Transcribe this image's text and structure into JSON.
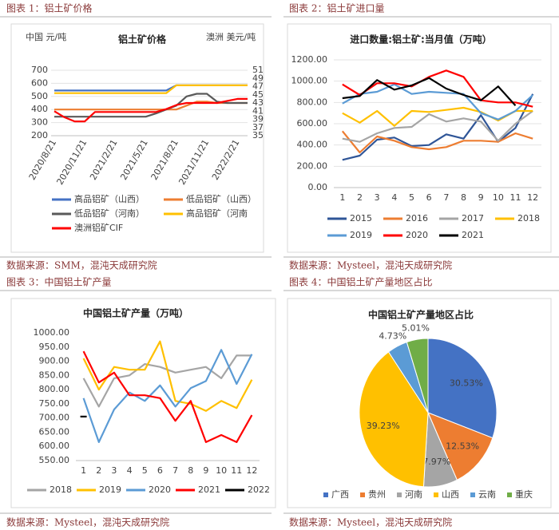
{
  "chart_data": [
    {
      "type": "line",
      "caption": "图表 1：铝土矿价格",
      "source": "数据来源：SMM，混沌天成研究院",
      "title": "铝土矿价格",
      "ylabel": "中国 元/吨",
      "y2label": "澳洲 美元/吨",
      "categories": [
        "2020/8/21",
        null,
        null,
        "2020/11/21",
        null,
        null,
        "2021/2/21",
        null,
        null,
        "2021/5/21",
        null,
        null,
        "2021/8/21",
        null,
        null,
        "2021/11/21",
        null,
        null,
        "2022/2/21",
        null
      ],
      "ylim": [
        200,
        700
      ],
      "yticks": [
        200,
        300,
        400,
        500,
        600,
        700
      ],
      "y2lim": [
        35,
        51
      ],
      "y2ticks": [
        35,
        37,
        39,
        41,
        43,
        45,
        47,
        49,
        51
      ],
      "grid": true,
      "series": [
        {
          "name": "高品铝矿（山西）",
          "color": "#4472c4",
          "values": [
            545,
            545,
            545,
            545,
            545,
            545,
            545,
            545,
            545,
            545,
            545,
            545,
            585,
            585,
            585,
            585,
            585,
            585,
            585,
            585
          ]
        },
        {
          "name": "低品铝矿（山西）",
          "color": "#ed7d31",
          "values": [
            400,
            400,
            400,
            400,
            400,
            400,
            400,
            400,
            400,
            400,
            400,
            400,
            400,
            430,
            460,
            460,
            450,
            450,
            450,
            450
          ]
        },
        {
          "name": "低品铝矿（河南）",
          "color": "#595959",
          "values": [
            345,
            345,
            345,
            345,
            345,
            345,
            345,
            345,
            345,
            345,
            370,
            400,
            430,
            500,
            520,
            520,
            460,
            450,
            450,
            450
          ]
        },
        {
          "name": "高品铝矿（河南",
          "color": "#ffc000",
          "values": [
            525,
            525,
            525,
            525,
            525,
            525,
            525,
            525,
            525,
            525,
            525,
            525,
            585,
            585,
            585,
            585,
            585,
            585,
            585,
            585
          ]
        },
        {
          "name": "澳洲铝矿CIF",
          "color": "#ff0000",
          "axis": "y2",
          "values": [
            41,
            39.5,
            38.5,
            38.5,
            40.8,
            40.8,
            40.8,
            40.8,
            40.8,
            40.8,
            40.8,
            41.5,
            42.5,
            43,
            43,
            43,
            43,
            43.5,
            44,
            44
          ]
        }
      ]
    },
    {
      "type": "line",
      "caption": "图表 2：铝土矿进口量",
      "source": "数据来源：Mysteel，混沌天成研究院",
      "title": "进口数量:铝土矿:当月值（万吨）",
      "categories": [
        "1",
        "2",
        "3",
        "4",
        "5",
        "6",
        "7",
        "8",
        "9",
        "10",
        "11",
        "12"
      ],
      "ylim": [
        0,
        1200
      ],
      "grid": true,
      "yticks": [
        {
          "value": 0,
          "label": "0.00"
        },
        {
          "value": 200,
          "label": "200.00"
        },
        {
          "value": 400,
          "label": "400.00"
        },
        {
          "value": 600,
          "label": "600.00"
        },
        {
          "value": 800,
          "label": "800.00"
        },
        {
          "value": 1000,
          "label": "1000.00"
        },
        {
          "value": 1200,
          "label": "1200.00"
        }
      ],
      "series": [
        {
          "name": "2015",
          "color": "#2f5597",
          "values": [
            260,
            300,
            450,
            470,
            390,
            400,
            500,
            460,
            680,
            430,
            560,
            880
          ]
        },
        {
          "name": "2016",
          "color": "#ed7d31",
          "values": [
            530,
            330,
            480,
            440,
            380,
            360,
            380,
            440,
            440,
            430,
            510,
            460
          ]
        },
        {
          "name": "2017",
          "color": "#a5a5a5",
          "values": [
            460,
            430,
            510,
            560,
            570,
            690,
            620,
            650,
            620,
            440,
            600,
            720
          ]
        },
        {
          "name": "2018",
          "color": "#ffc000",
          "values": [
            700,
            610,
            720,
            580,
            720,
            710,
            730,
            750,
            710,
            630,
            720,
            720
          ]
        },
        {
          "name": "2019",
          "color": "#5b9bd5",
          "values": [
            790,
            880,
            900,
            970,
            880,
            900,
            890,
            880,
            700,
            640,
            720,
            870
          ]
        },
        {
          "name": "2020",
          "color": "#ff0000",
          "values": [
            970,
            870,
            980,
            980,
            950,
            1040,
            1100,
            1040,
            820,
            800,
            800,
            760
          ]
        },
        {
          "name": "2021",
          "color": "#000000",
          "values": [
            840,
            860,
            1010,
            920,
            960,
            1030,
            930,
            870,
            820,
            950,
            770,
            null
          ]
        }
      ]
    },
    {
      "type": "line",
      "caption": "图表 3：中国铝土矿产量",
      "source": "数据来源：Mysteel，混沌天成研究院",
      "title": "中国铝土矿产量（万吨）",
      "categories": [
        "1",
        "2",
        "3",
        "4",
        "5",
        "6",
        "7",
        "8",
        "9",
        "10",
        "11",
        "12"
      ],
      "ylim": [
        550,
        1000
      ],
      "grid": false,
      "yticks": [
        {
          "value": 550,
          "label": "550.00"
        },
        {
          "value": 600,
          "label": "600.00"
        },
        {
          "value": 650,
          "label": "650.00"
        },
        {
          "value": 700,
          "label": "700.00"
        },
        {
          "value": 750,
          "label": "750.00"
        },
        {
          "value": 800,
          "label": "800.00"
        },
        {
          "value": 850,
          "label": "850.00"
        },
        {
          "value": 900,
          "label": "900.00"
        },
        {
          "value": 950,
          "label": "950.00"
        },
        {
          "value": 1000,
          "label": "1000.00"
        }
      ],
      "series": [
        {
          "name": "2018",
          "color": "#a5a5a5",
          "values": [
            840,
            740,
            840,
            850,
            890,
            880,
            860,
            870,
            880,
            840,
            920,
            920
          ]
        },
        {
          "name": "2019",
          "color": "#ffc000",
          "values": [
            910,
            800,
            880,
            870,
            870,
            970,
            760,
            750,
            725,
            760,
            735,
            835
          ]
        },
        {
          "name": "2020",
          "color": "#5b9bd5",
          "values": [
            770,
            615,
            730,
            790,
            760,
            815,
            740,
            805,
            830,
            940,
            820,
            925
          ]
        },
        {
          "name": "2021",
          "color": "#ff0000",
          "values": [
            935,
            825,
            860,
            780,
            780,
            770,
            690,
            760,
            615,
            640,
            615,
            710
          ]
        },
        {
          "name": "2022",
          "color": "#000000",
          "values": [
            705,
            null,
            null,
            null,
            null,
            null,
            null,
            null,
            null,
            null,
            null,
            null
          ]
        }
      ]
    },
    {
      "type": "pie",
      "caption": "图表 4：中国铝土矿产量地区占比",
      "source": "数据来源：Mysteel，混沌天成研究院",
      "title": "中国铝土矿产量地区占比",
      "categories": [
        "广西",
        "贵州",
        "河南",
        "山西",
        "云南",
        "重庆"
      ],
      "values": [
        30.53,
        12.53,
        7.97,
        39.23,
        4.73,
        5.01
      ],
      "value_labels": [
        "30.53%",
        "12.53%",
        "7.97%",
        "39.23%",
        "4.73%",
        "5.01%"
      ],
      "colors": [
        "#4472c4",
        "#ed7d31",
        "#a5a5a5",
        "#ffc000",
        "#5b9bd5",
        "#70ad47"
      ]
    }
  ]
}
